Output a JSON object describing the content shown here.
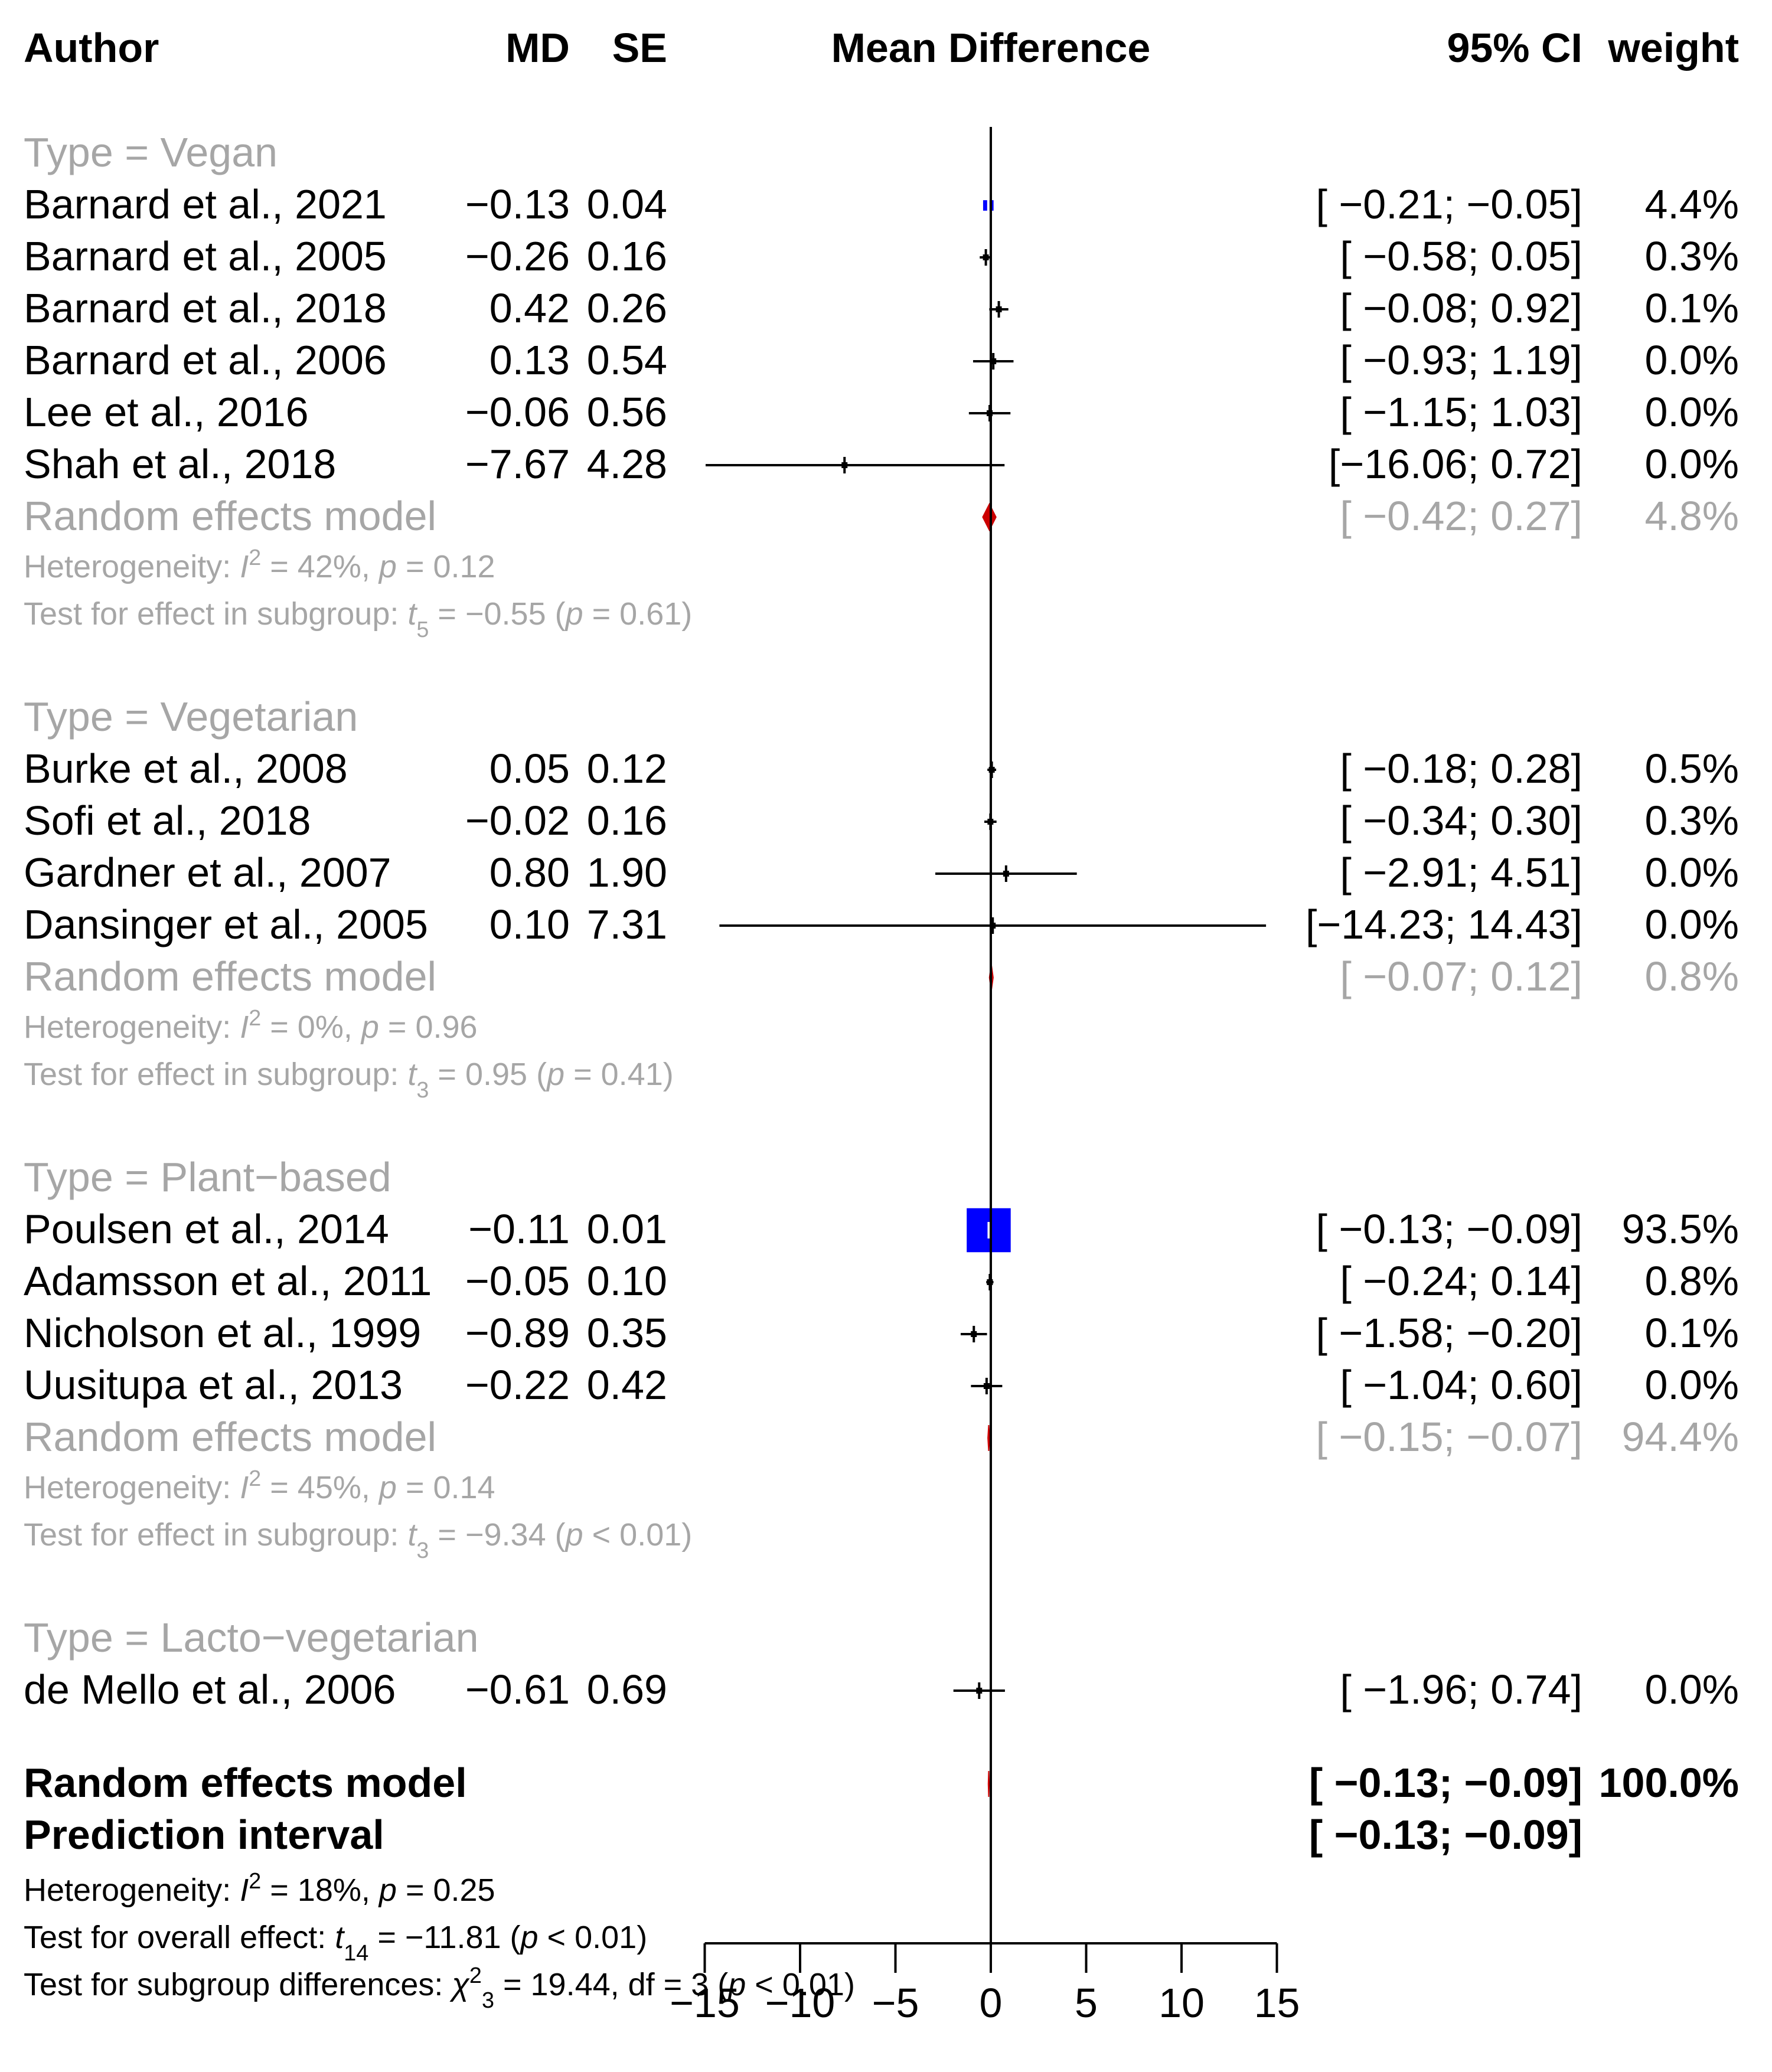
{
  "chart_data": {
    "type": "forest",
    "header": {
      "author": "Author",
      "md": "MD",
      "se": "SE",
      "plot": "Mean Difference",
      "ci": "95% CI",
      "weight": "weight"
    },
    "xlim": [
      -15,
      15
    ],
    "reference_line": 0,
    "x_ticks": [
      -15,
      -10,
      -5,
      0,
      5,
      10,
      15
    ],
    "x_tick_labels": [
      "−15",
      "−10",
      "−5",
      "0",
      "5",
      "10",
      "15"
    ],
    "groups": [
      {
        "label": "Type = Vegan",
        "studies": [
          {
            "author": "Barnard et al., 2021",
            "md": -0.13,
            "se": 0.04,
            "md_text": "−0.13",
            "se_text": "0.04",
            "lower": -0.21,
            "upper": -0.05,
            "ci_text": "[ −0.21; −0.05]",
            "weight": "4.4%"
          },
          {
            "author": "Barnard et al., 2005",
            "md": -0.26,
            "se": 0.16,
            "md_text": "−0.26",
            "se_text": "0.16",
            "lower": -0.58,
            "upper": 0.05,
            "ci_text": "[ −0.58;  0.05]",
            "weight": "0.3%"
          },
          {
            "author": "Barnard et al., 2018",
            "md": 0.42,
            "se": 0.26,
            "md_text": "0.42",
            "se_text": "0.26",
            "lower": -0.08,
            "upper": 0.92,
            "ci_text": "[ −0.08;  0.92]",
            "weight": "0.1%"
          },
          {
            "author": "Barnard et al., 2006",
            "md": 0.13,
            "se": 0.54,
            "md_text": "0.13",
            "se_text": "0.54",
            "lower": -0.93,
            "upper": 1.19,
            "ci_text": "[ −0.93;  1.19]",
            "weight": "0.0%"
          },
          {
            "author": "Lee et al., 2016",
            "md": -0.06,
            "se": 0.56,
            "md_text": "−0.06",
            "se_text": "0.56",
            "lower": -1.15,
            "upper": 1.03,
            "ci_text": "[ −1.15;  1.03]",
            "weight": "0.0%"
          },
          {
            "author": "Shah et al., 2018",
            "md": -7.67,
            "se": 4.28,
            "md_text": "−7.67",
            "se_text": "4.28",
            "lower": -16.06,
            "upper": 0.72,
            "ci_text": "[−16.06;  0.72]",
            "weight": "0.0%"
          }
        ],
        "model": {
          "label": "Random effects model",
          "lower": -0.42,
          "upper": 0.27,
          "ci_text": "[ −0.42;  0.27]",
          "weight": "4.8%"
        },
        "heterogeneity": {
          "prefix": "Heterogeneity: ",
          "i2_symbol": "I",
          "i2_sup": "2",
          "rest": " = 42%, ",
          "p_symbol": "p",
          "p_rest": " = 0.12"
        },
        "test": {
          "prefix": "Test for effect in subgroup: ",
          "t_symbol": "t",
          "t_sub": "5",
          "rest": " = −0.55 (",
          "p_symbol": "p",
          "p_rest": " = 0.61)"
        }
      },
      {
        "label": "Type = Vegetarian",
        "studies": [
          {
            "author": "Burke et al., 2008",
            "md": 0.05,
            "se": 0.12,
            "md_text": "0.05",
            "se_text": "0.12",
            "lower": -0.18,
            "upper": 0.28,
            "ci_text": "[ −0.18;  0.28]",
            "weight": "0.5%"
          },
          {
            "author": "Sofi et al., 2018",
            "md": -0.02,
            "se": 0.16,
            "md_text": "−0.02",
            "se_text": "0.16",
            "lower": -0.34,
            "upper": 0.3,
            "ci_text": "[ −0.34;  0.30]",
            "weight": "0.3%"
          },
          {
            "author": "Gardner et al., 2007",
            "md": 0.8,
            "se": 1.9,
            "md_text": "0.80",
            "se_text": "1.90",
            "lower": -2.91,
            "upper": 4.51,
            "ci_text": "[ −2.91;  4.51]",
            "weight": "0.0%"
          },
          {
            "author": "Dansinger et al., 2005",
            "md": 0.1,
            "se": 7.31,
            "md_text": "0.10",
            "se_text": "7.31",
            "lower": -14.23,
            "upper": 14.43,
            "ci_text": "[−14.23; 14.43]",
            "weight": "0.0%"
          }
        ],
        "model": {
          "label": "Random effects model",
          "lower": -0.07,
          "upper": 0.12,
          "ci_text": "[ −0.07;  0.12]",
          "weight": "0.8%"
        },
        "heterogeneity": {
          "prefix": "Heterogeneity: ",
          "i2_symbol": "I",
          "i2_sup": "2",
          "rest": " = 0%, ",
          "p_symbol": "p",
          "p_rest": " = 0.96"
        },
        "test": {
          "prefix": "Test for effect in subgroup: ",
          "t_symbol": "t",
          "t_sub": "3",
          "rest": " = 0.95 (",
          "p_symbol": "p",
          "p_rest": " = 0.41)"
        }
      },
      {
        "label": "Type = Plant−based",
        "studies": [
          {
            "author": "Poulsen et al., 2014",
            "md": -0.11,
            "se": 0.01,
            "md_text": "−0.11",
            "se_text": "0.01",
            "lower": -0.13,
            "upper": -0.09,
            "ci_text": "[ −0.13; −0.09]",
            "weight": "93.5%"
          },
          {
            "author": "Adamsson et al., 2011",
            "md": -0.05,
            "se": 0.1,
            "md_text": "−0.05",
            "se_text": "0.10",
            "lower": -0.24,
            "upper": 0.14,
            "ci_text": "[ −0.24;  0.14]",
            "weight": "0.8%"
          },
          {
            "author": "Nicholson et al., 1999",
            "md": -0.89,
            "se": 0.35,
            "md_text": "−0.89",
            "se_text": "0.35",
            "lower": -1.58,
            "upper": -0.2,
            "ci_text": "[ −1.58; −0.20]",
            "weight": "0.1%"
          },
          {
            "author": "Uusitupa et al., 2013",
            "md": -0.22,
            "se": 0.42,
            "md_text": "−0.22",
            "se_text": "0.42",
            "lower": -1.04,
            "upper": 0.6,
            "ci_text": "[ −1.04;  0.60]",
            "weight": "0.0%"
          }
        ],
        "model": {
          "label": "Random effects model",
          "lower": -0.15,
          "upper": -0.07,
          "ci_text": "[ −0.15; −0.07]",
          "weight": "94.4%"
        },
        "heterogeneity": {
          "prefix": "Heterogeneity: ",
          "i2_symbol": "I",
          "i2_sup": "2",
          "rest": " = 45%, ",
          "p_symbol": "p",
          "p_rest": " = 0.14"
        },
        "test": {
          "prefix": "Test for effect in subgroup: ",
          "t_symbol": "t",
          "t_sub": "3",
          "rest": " = −9.34 (",
          "p_symbol": "p",
          "p_rest": " < 0.01)"
        }
      },
      {
        "label": "Type = Lacto−vegetarian",
        "studies": [
          {
            "author": "de Mello et al., 2006",
            "md": -0.61,
            "se": 0.69,
            "md_text": "−0.61",
            "se_text": "0.69",
            "lower": -1.96,
            "upper": 0.74,
            "ci_text": "[ −1.96;  0.74]",
            "weight": "0.0%"
          }
        ]
      }
    ],
    "overall": {
      "model": {
        "label": "Random effects model",
        "lower": -0.13,
        "upper": -0.09,
        "ci_text": "[ −0.13; −0.09]",
        "weight": "100.0%"
      },
      "prediction": {
        "label": "Prediction interval",
        "lower": -0.13,
        "upper": -0.09,
        "ci_text": "[ −0.13; −0.09]"
      },
      "heterogeneity": {
        "prefix": "Heterogeneity: ",
        "i2_symbol": "I",
        "i2_sup": "2",
        "rest": " = 18%, ",
        "p_symbol": "p",
        "p_rest": " = 0.25"
      },
      "overall_test": {
        "prefix": "Test for overall effect: ",
        "t_symbol": "t",
        "t_sub": "14",
        "rest": " = −11.81 (",
        "p_symbol": "p",
        "p_rest": " < 0.01)"
      },
      "subgroup_test": {
        "prefix": "Test for subgroup differences: ",
        "chi_symbol": "χ",
        "chi_sup": "2",
        "chi_sub": "3",
        "rest": " = 19.44, df = 3 (",
        "p_symbol": "p",
        "p_rest": " < 0.01)"
      }
    },
    "colors": {
      "ink": "#000000",
      "grey": "#a6a6a6",
      "square": "#0000ff",
      "diamond": "#cc0000"
    }
  }
}
